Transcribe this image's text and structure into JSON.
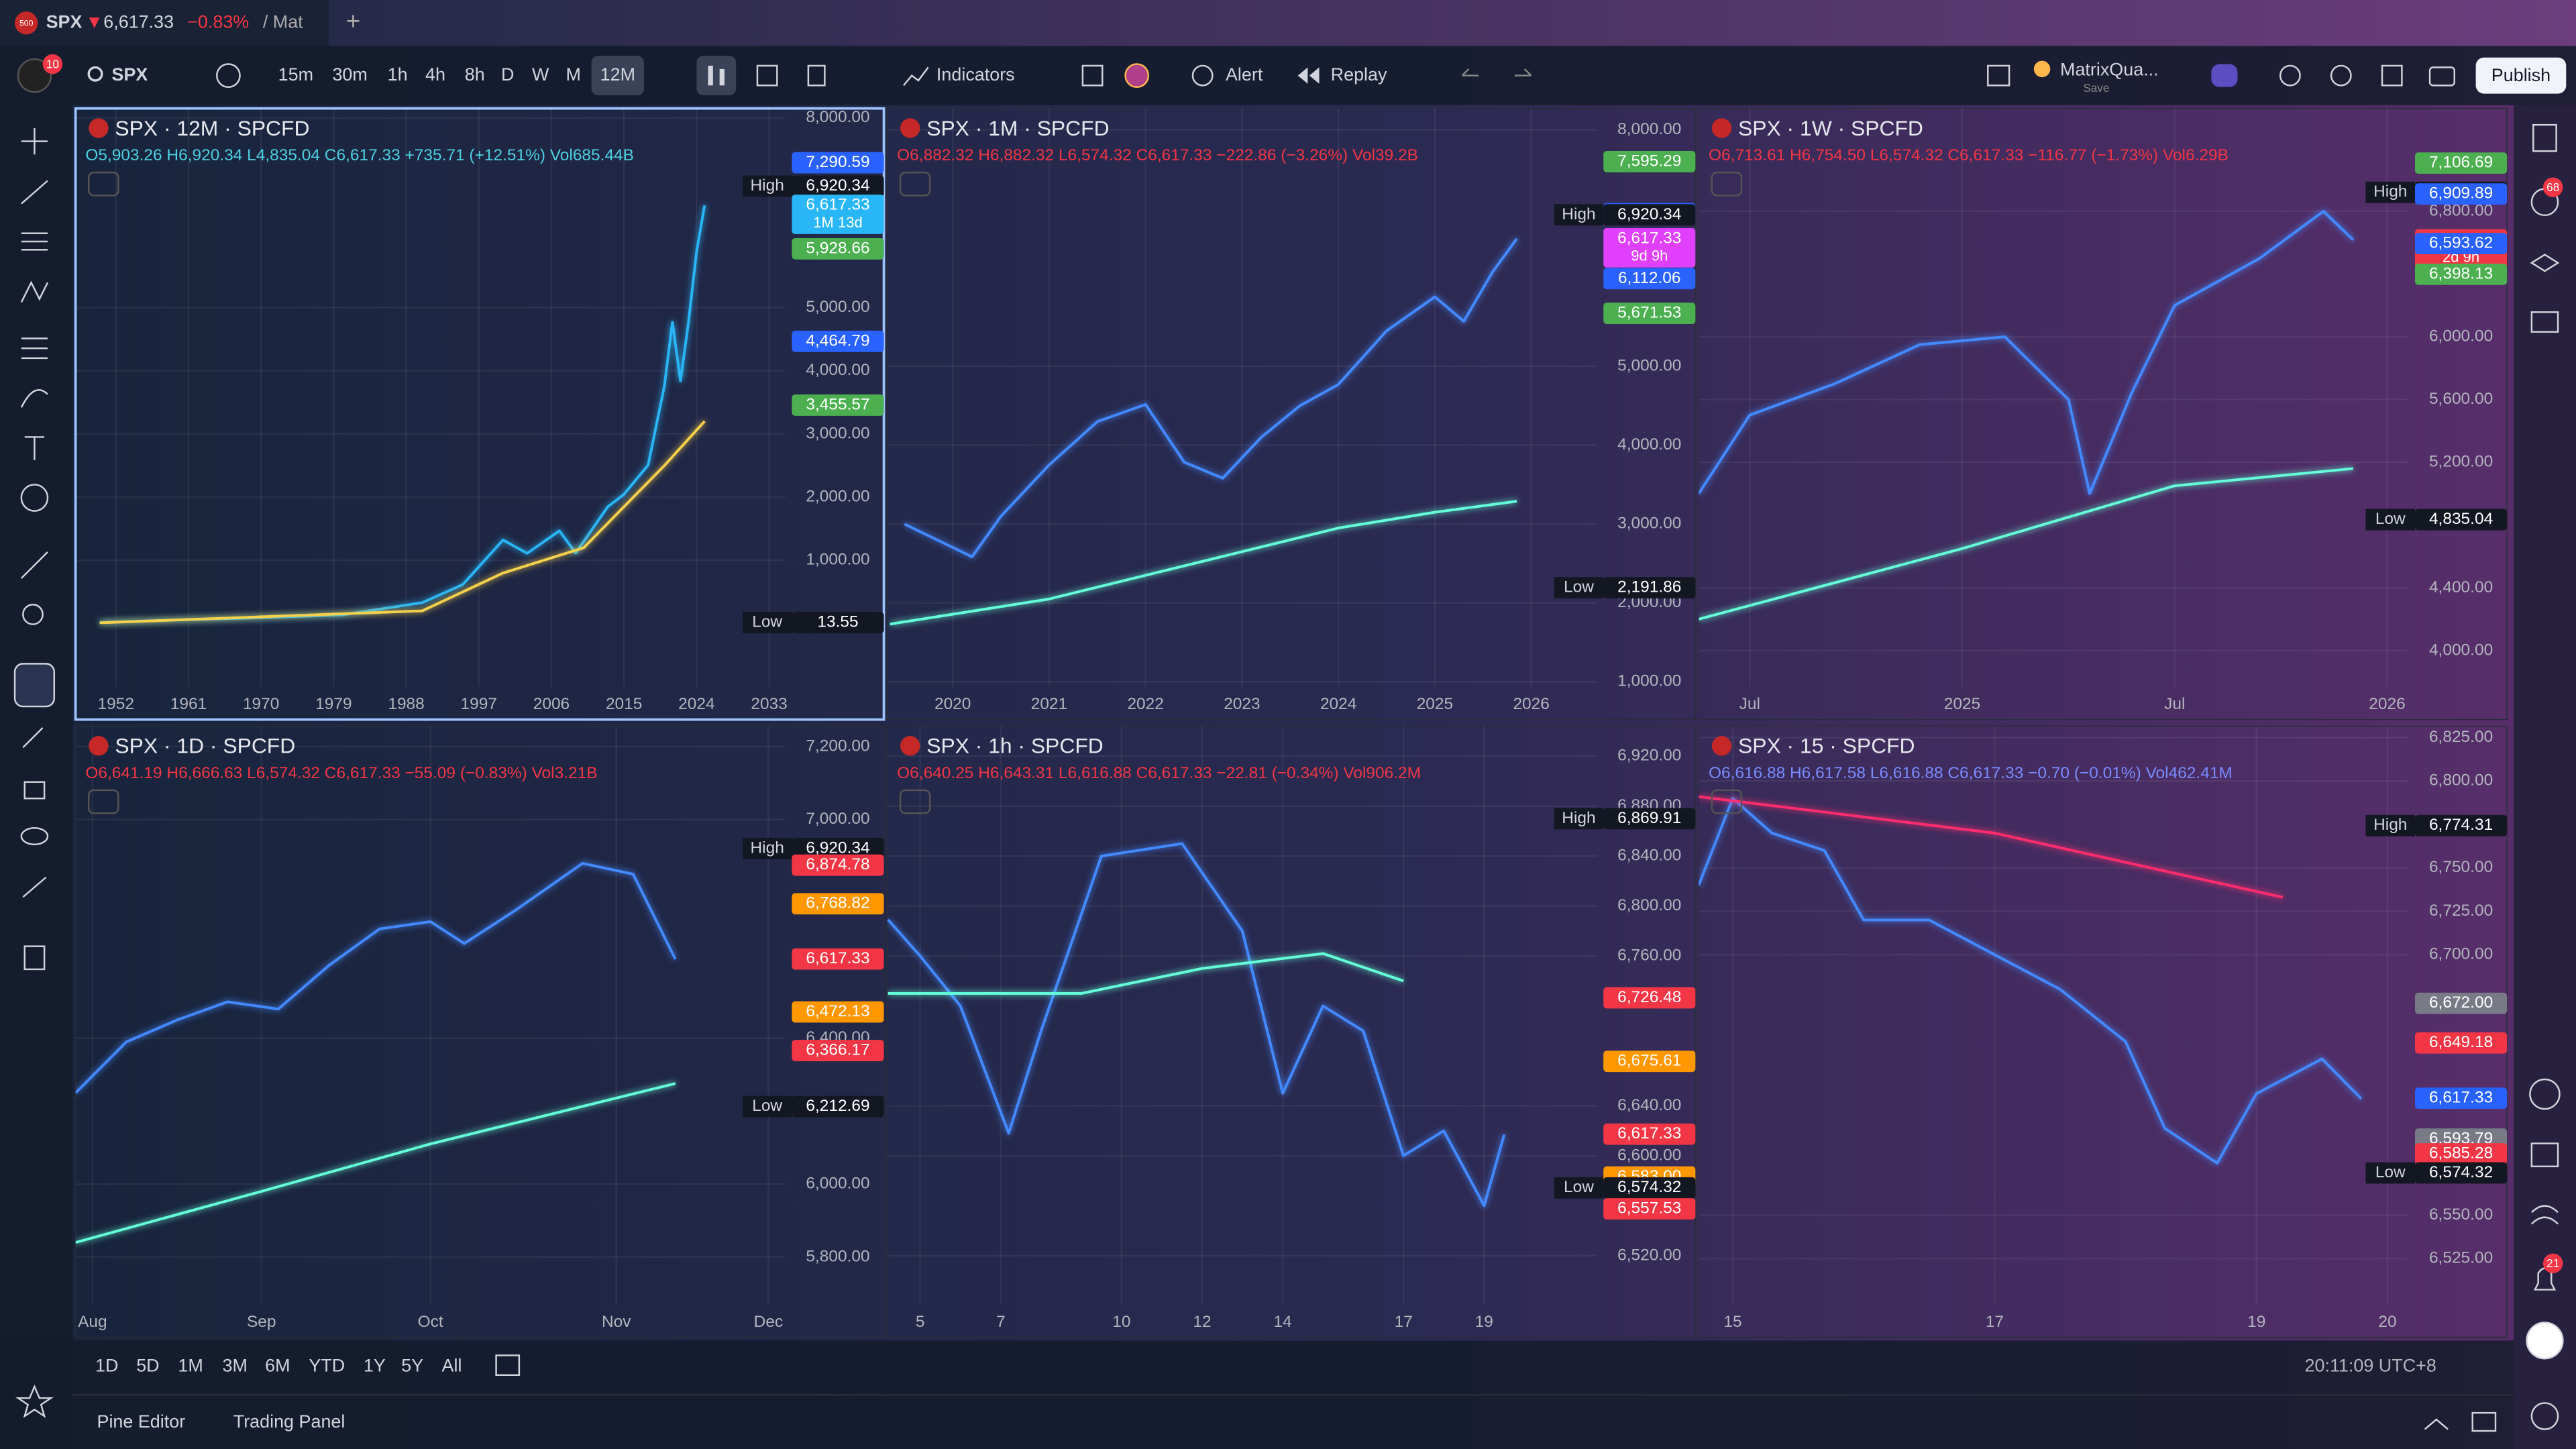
{
  "tab": {
    "logo": "500",
    "symbol": "SPX",
    "price": "6,617.33",
    "change": "−0.83%",
    "extra": "/ Mat"
  },
  "toolbar": {
    "badge": "10",
    "symbol": "SPX",
    "intervals": [
      "15m",
      "30m",
      "1h",
      "4h",
      "8h",
      "D",
      "W",
      "M",
      "12M"
    ],
    "indicators": "Indicators",
    "alert": "Alert",
    "replay": "Replay",
    "layout": "MatrixQua...",
    "save": "Save",
    "publish": "Publish"
  },
  "sidebar": {
    "badge_top": "68",
    "badge_bottom": "21"
  },
  "bottom_bar": {
    "ranges": [
      "1D",
      "5D",
      "1M",
      "3M",
      "6M",
      "YTD",
      "1Y",
      "5Y",
      "All"
    ],
    "clock": "20:11:09 UTC+8"
  },
  "panel_tabs": [
    "Pine Editor",
    "Trading Panel"
  ],
  "chart_data": [
    {
      "type": "line",
      "title": "SPX · 12M · SPCFD",
      "ohlc": "O5,903.26 H6,920.34 L4,835.04 C6,617.33 +735.71 (+12.51%) Vol685.44B",
      "ohlc_color": "#4dd0e1",
      "xlim": [
        1947,
        2035
      ],
      "xticks": [
        1952,
        1961,
        1970,
        1979,
        1988,
        1997,
        2006,
        2015,
        2024,
        2033
      ],
      "ylim": [
        -1000,
        8150
      ],
      "yticks": [
        {
          "value": 8000,
          "label": "8,000.00"
        },
        {
          "value": 5000,
          "label": "5,000.00"
        },
        {
          "value": 4000,
          "label": "4,000.00"
        },
        {
          "value": 3000,
          "label": "3,000.00"
        },
        {
          "value": 2000,
          "label": "2,000.00"
        },
        {
          "value": 1000,
          "label": "1,000.00"
        }
      ],
      "price_tags": [
        {
          "value": 7290.59,
          "label": "7,290.59",
          "color": "#2962ff"
        },
        {
          "value": 6920.34,
          "label": "6,920.34",
          "color": "#131722",
          "caption": "High"
        },
        {
          "value": 6617.33,
          "label": "6,617.33",
          "color": "#29b6f6",
          "note": "1M 13d"
        },
        {
          "value": 5928.66,
          "label": "5,928.66",
          "color": "#4caf50"
        },
        {
          "value": 4464.79,
          "label": "4,464.79",
          "color": "#2962ff"
        },
        {
          "value": 3455.57,
          "label": "3,455.57",
          "color": "#4caf50"
        },
        {
          "value": 13.55,
          "label": "13.55",
          "color": "#131722",
          "caption": "Low"
        }
      ],
      "series": [
        {
          "color": "#29b6f6",
          "x": [
            1950,
            1960,
            1970,
            1980,
            1990,
            1995,
            2000,
            2003,
            2007,
            2009,
            2013,
            2015,
            2018,
            2020,
            2021,
            2022,
            2023,
            2024,
            2025
          ],
          "values": [
            17,
            58,
            92,
            136,
            330,
            615,
            1320,
            1111,
            1468,
            1115,
            1848,
            2044,
            2507,
            3756,
            4766,
            3840,
            4770,
            5882,
            6617
          ]
        },
        {
          "color": "#f5d14b",
          "x": [
            1950,
            1990,
            2000,
            2010,
            2020,
            2025
          ],
          "values": [
            10,
            200,
            800,
            1200,
            2500,
            3200
          ]
        }
      ]
    },
    {
      "type": "line",
      "title": "SPX · 1M · SPCFD",
      "ohlc": "O6,882.32 H6,882.32 L6,574.32 C6,617.33 −222.86 (−3.26%) Vol39.2B",
      "ohlc_color": "#f23645",
      "xlim": [
        2019.32,
        2026.68
      ],
      "xticks": [
        2020,
        2021,
        2022,
        2023,
        2024,
        2025,
        2026
      ],
      "ylim": [
        937,
        8270
      ],
      "yticks": [
        {
          "value": 8000,
          "label": "8,000.00"
        },
        {
          "value": 5000,
          "label": "5,000.00"
        },
        {
          "value": 4000,
          "label": "4,000.00"
        },
        {
          "value": 3000,
          "label": "3,000.00"
        },
        {
          "value": 2000,
          "label": "2,000.00"
        },
        {
          "value": 1000,
          "label": "1,000.00"
        }
      ],
      "price_tags": [
        {
          "value": 7595.29,
          "label": "7,595.29",
          "color": "#4caf50"
        },
        {
          "value": 6936.16,
          "label": "6,936.16",
          "color": "#2962ff"
        },
        {
          "value": 6920.34,
          "label": "6,920.34",
          "color": "#131722",
          "caption": "High"
        },
        {
          "value": 6617.33,
          "label": "6,617.33",
          "color": "#e040fb",
          "note": "9d 9h"
        },
        {
          "value": 6112.06,
          "label": "6,112.06",
          "color": "#2962ff"
        },
        {
          "value": 5671.53,
          "label": "5,671.53",
          "color": "#4caf50"
        },
        {
          "value": 2191.86,
          "label": "2,191.86",
          "color": "#131722",
          "caption": "Low"
        }
      ],
      "series": [
        {
          "color": "#448aff",
          "x": [
            2019.5,
            2020.2,
            2020.5,
            2021,
            2021.5,
            2022,
            2022.4,
            2022.8,
            2023.2,
            2023.6,
            2024,
            2024.5,
            2025,
            2025.3,
            2025.6,
            2025.85
          ],
          "values": [
            3000,
            2585,
            3100,
            3750,
            4300,
            4515,
            3785,
            3580,
            4100,
            4500,
            4770,
            5450,
            5880,
            5570,
            6200,
            6617
          ]
        },
        {
          "color": "#64ffda",
          "x": [
            2019.35,
            2021,
            2022,
            2023,
            2024,
            2025,
            2025.85
          ],
          "values": [
            1730,
            2050,
            2350,
            2650,
            2950,
            3150,
            3290
          ]
        }
      ]
    },
    {
      "type": "line",
      "title": "SPX · 1W · SPCFD",
      "ohlc": "O6,713.61 H6,754.50 L6,574.32 C6,617.33 −116.77 (−1.73%) Vol6.29B",
      "ohlc_color": "#f23645",
      "xlim": [
        2024.38,
        2026.05
      ],
      "xticks": [
        {
          "value": 2024.5,
          "label": "Jul"
        },
        2025,
        {
          "value": 2025.5,
          "label": "Jul"
        },
        2026
      ],
      "ylim": [
        3770,
        7455
      ],
      "yticks": [
        {
          "value": 6800,
          "label": "6,800.00"
        },
        {
          "value": 6000,
          "label": "6,000.00"
        },
        {
          "value": 5600,
          "label": "5,600.00"
        },
        {
          "value": 5200,
          "label": "5,200.00"
        },
        {
          "value": 4400,
          "label": "4,400.00"
        },
        {
          "value": 4000,
          "label": "4,000.00"
        }
      ],
      "price_tags": [
        {
          "value": 7106.69,
          "label": "7,106.69",
          "color": "#4caf50"
        },
        {
          "value": 6920.34,
          "label": "6,920.34",
          "color": "#131722",
          "caption": "High"
        },
        {
          "value": 6909.89,
          "label": "6,909.89",
          "color": "#2962ff"
        },
        {
          "value": 6617.33,
          "label": "6,617.33",
          "color": "#f23645",
          "note": "2d 9h"
        },
        {
          "value": 6593.62,
          "label": "6,593.62",
          "color": "#2962ff"
        },
        {
          "value": 6398.13,
          "label": "6,398.13",
          "color": "#4caf50"
        },
        {
          "value": 4835.04,
          "label": "4,835.04",
          "color": "#131722",
          "caption": "Low"
        }
      ],
      "series": [
        {
          "color": "#448aff",
          "x": [
            2024.38,
            2024.5,
            2024.7,
            2024.9,
            2025.1,
            2025.25,
            2025.3,
            2025.4,
            2025.5,
            2025.7,
            2025.85,
            2025.92
          ],
          "values": [
            5000,
            5500,
            5700,
            5950,
            6000,
            5600,
            5000,
            5650,
            6200,
            6500,
            6800,
            6617
          ]
        },
        {
          "color": "#64ffda",
          "x": [
            2024.38,
            2025,
            2025.5,
            2025.92
          ],
          "values": [
            4200,
            4650,
            5050,
            5160
          ]
        }
      ]
    },
    {
      "type": "line",
      "title": "SPX · 1D · SPCFD",
      "ohlc": "O6,641.19 H6,666.63 L6,574.32 C6,617.33 −55.09 (−0.83%) Vol3.21B",
      "ohlc_color": "#f23645",
      "xlim": [
        7.9,
        12.1
      ],
      "xticks": [
        {
          "value": 8,
          "label": "Aug"
        },
        {
          "value": 9,
          "label": "Sep"
        },
        {
          "value": 10,
          "label": "Oct"
        },
        {
          "value": 11.1,
          "label": "Nov"
        },
        {
          "value": 12,
          "label": "Dec"
        }
      ],
      "ylim": [
        5670,
        7256
      ],
      "yticks": [
        {
          "value": 7200,
          "label": "7,200.00"
        },
        {
          "value": 7000,
          "label": "7,000.00"
        },
        {
          "value": 6400,
          "label": "6,400.00"
        },
        {
          "value": 6000,
          "label": "6,000.00"
        },
        {
          "value": 5800,
          "label": "5,800.00"
        }
      ],
      "price_tags": [
        {
          "value": 6920.34,
          "label": "6,920.34",
          "color": "#131722",
          "caption": "High"
        },
        {
          "value": 6874.78,
          "label": "6,874.78",
          "color": "#f23645"
        },
        {
          "value": 6768.82,
          "label": "6,768.82",
          "color": "#ff9800"
        },
        {
          "value": 6617.33,
          "label": "6,617.33",
          "color": "#f23645"
        },
        {
          "value": 6472.13,
          "label": "6,472.13",
          "color": "#ff9800"
        },
        {
          "value": 6366.17,
          "label": "6,366.17",
          "color": "#f23645"
        },
        {
          "value": 6212.69,
          "label": "6,212.69",
          "color": "#131722",
          "caption": "Low"
        }
      ],
      "series": [
        {
          "color": "#448aff",
          "x": [
            7.9,
            8.2,
            8.5,
            8.8,
            9.1,
            9.4,
            9.7,
            10,
            10.2,
            10.5,
            10.9,
            11.2,
            11.45
          ],
          "values": [
            6250,
            6390,
            6450,
            6500,
            6480,
            6600,
            6700,
            6720,
            6660,
            6750,
            6880,
            6850,
            6617
          ]
        },
        {
          "color": "#64ffda",
          "x": [
            7.9,
            9,
            10,
            11.45
          ],
          "values": [
            5840,
            5980,
            6110,
            6276
          ]
        }
      ]
    },
    {
      "type": "line",
      "title": "SPX · 1h · SPCFD",
      "ohlc": "O6,640.25 H6,643.31 L6,616.88 C6,617.33 −22.81 (−0.34%) Vol906.2M",
      "ohlc_color": "#f23645",
      "xlim": [
        4.18,
        21.8
      ],
      "xticks": [
        5,
        7,
        10,
        12,
        14,
        17,
        19
      ],
      "ylim": [
        6481,
        6944
      ],
      "yticks": [
        {
          "value": 6920,
          "label": "6,920.00"
        },
        {
          "value": 6880,
          "label": "6,880.00"
        },
        {
          "value": 6840,
          "label": "6,840.00"
        },
        {
          "value": 6800,
          "label": "6,800.00"
        },
        {
          "value": 6760,
          "label": "6,760.00"
        },
        {
          "value": 6640,
          "label": "6,640.00"
        },
        {
          "value": 6600,
          "label": "6,600.00"
        },
        {
          "value": 6520,
          "label": "6,520.00"
        }
      ],
      "price_tags": [
        {
          "value": 6869.91,
          "label": "6,869.91",
          "color": "#131722",
          "caption": "High"
        },
        {
          "value": 6726.48,
          "label": "6,726.48",
          "color": "#f23645"
        },
        {
          "value": 6675.61,
          "label": "6,675.61",
          "color": "#ff9800"
        },
        {
          "value": 6617.33,
          "label": "6,617.33",
          "color": "#f23645"
        },
        {
          "value": 6583,
          "label": "6,583.00",
          "color": "#ff9800"
        },
        {
          "value": 6574.32,
          "label": "6,574.32",
          "color": "#131722",
          "caption": "Low"
        },
        {
          "value": 6557.53,
          "label": "6,557.53",
          "color": "#f23645"
        }
      ],
      "series": [
        {
          "color": "#448aff",
          "x": [
            4.2,
            5,
            6,
            7.2,
            8,
            9.5,
            11.5,
            13,
            14,
            15,
            16,
            17,
            18,
            19,
            19.5
          ],
          "values": [
            6789,
            6760,
            6720,
            6618,
            6700,
            6840,
            6850,
            6780,
            6650,
            6720,
            6700,
            6600,
            6620,
            6560,
            6617
          ]
        },
        {
          "color": "#64ffda",
          "x": [
            4.2,
            9,
            12,
            15,
            17
          ],
          "values": [
            6730,
            6730,
            6750,
            6762,
            6740
          ]
        }
      ]
    },
    {
      "type": "line",
      "title": "SPX · 15 · SPCFD",
      "ohlc": "O6,616.88 H6,617.58 L6,616.88 C6,617.33 −0.70 (−0.01%) Vol462.41M",
      "ohlc_color": "#7b8cff",
      "xlim": [
        14.74,
        20.16
      ],
      "xticks": [
        15,
        17,
        19,
        20
      ],
      "ylim": [
        6498.6,
        6831.6
      ],
      "yticks": [
        {
          "value": 6825,
          "label": "6,825.00"
        },
        {
          "value": 6800,
          "label": "6,800.00"
        },
        {
          "value": 6750,
          "label": "6,750.00"
        },
        {
          "value": 6725,
          "label": "6,725.00"
        },
        {
          "value": 6700,
          "label": "6,700.00"
        },
        {
          "value": 6550,
          "label": "6,550.00"
        },
        {
          "value": 6525,
          "label": "6,525.00"
        }
      ],
      "price_tags": [
        {
          "value": 6774.31,
          "label": "6,774.31",
          "color": "#131722",
          "caption": "High"
        },
        {
          "value": 6672,
          "label": "6,672.00",
          "color": "#787b86"
        },
        {
          "value": 6649.18,
          "label": "6,649.18",
          "color": "#f23645"
        },
        {
          "value": 6617.33,
          "label": "6,617.33",
          "color": "#2962ff"
        },
        {
          "value": 6593.79,
          "label": "6,593.79",
          "color": "#787b86"
        },
        {
          "value": 6585.28,
          "label": "6,585.28",
          "color": "#f23645"
        },
        {
          "value": 6574.32,
          "label": "6,574.32",
          "color": "#131722",
          "caption": "Low"
        }
      ],
      "series": [
        {
          "color": "#448aff",
          "x": [
            14.74,
            15,
            15.3,
            15.7,
            16,
            16.5,
            17,
            17.5,
            18,
            18.3,
            18.7,
            19,
            19.5,
            19.8
          ],
          "values": [
            6740,
            6790,
            6770,
            6760,
            6720,
            6720,
            6700,
            6680,
            6650,
            6600,
            6580,
            6620,
            6640,
            6617
          ]
        },
        {
          "color": "#ff2d6f",
          "x": [
            14.74,
            17,
            19.2
          ],
          "values": [
            6791,
            6770,
            6733
          ]
        }
      ]
    }
  ]
}
